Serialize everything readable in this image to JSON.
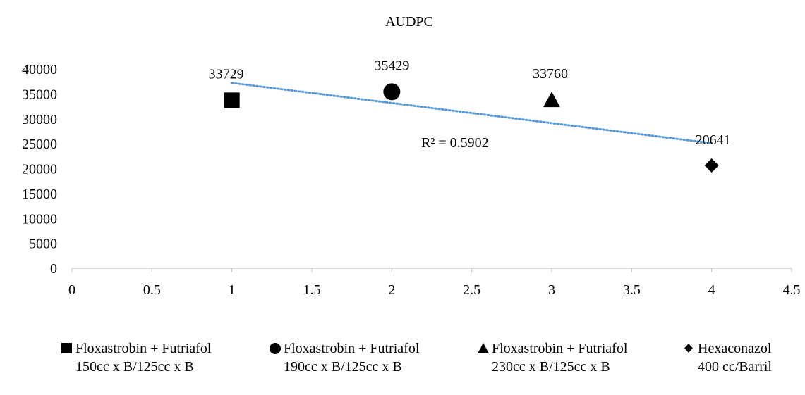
{
  "chart_data": {
    "type": "scatter",
    "title": "AUDPC",
    "xlabel": "",
    "ylabel": "",
    "xlim": [
      0,
      4.5
    ],
    "ylim": [
      0,
      40000
    ],
    "x_ticks": [
      "0",
      "0.5",
      "1",
      "1.5",
      "2",
      "2.5",
      "3",
      "3.5",
      "4",
      "4.5"
    ],
    "y_ticks": [
      "0",
      "5000",
      "10000",
      "15000",
      "20000",
      "25000",
      "30000",
      "35000",
      "40000"
    ],
    "series": [
      {
        "name": "Floxastrobin + Futriafol 150cc x B/125cc x B",
        "marker": "square",
        "x": 1,
        "y": 33729,
        "label": "33729"
      },
      {
        "name": "Floxastrobin + Futriafol 190cc x B/125cc x B",
        "marker": "circle",
        "x": 2,
        "y": 35429,
        "label": "35429"
      },
      {
        "name": "Floxastrobin + Futriafol 230cc x B/125cc x B",
        "marker": "triangle",
        "x": 3,
        "y": 33760,
        "label": "33760"
      },
      {
        "name": "Hexaconazol 400 cc/Barril",
        "marker": "diamond",
        "x": 4,
        "y": 20641,
        "label": "20641"
      }
    ],
    "trendline": {
      "type": "linear",
      "x": [
        1,
        4
      ],
      "y": [
        37200,
        25100
      ],
      "r2_label": "R² = 0.5902",
      "color": "#5b9bd5"
    },
    "grid": false,
    "legend_position": "bottom"
  },
  "legend": [
    {
      "line1": "Floxastrobin + Futriafol",
      "line2": "150cc x B/125cc x B",
      "marker": "square"
    },
    {
      "line1": "Floxastrobin + Futriafol",
      "line2": "190cc x B/125cc x B",
      "marker": "circle"
    },
    {
      "line1": "Floxastrobin + Futriafol",
      "line2": "230cc x B/125cc x B",
      "marker": "triangle"
    },
    {
      "line1": "Hexaconazol",
      "line2": "400 cc/Barril",
      "marker": "diamond"
    }
  ]
}
